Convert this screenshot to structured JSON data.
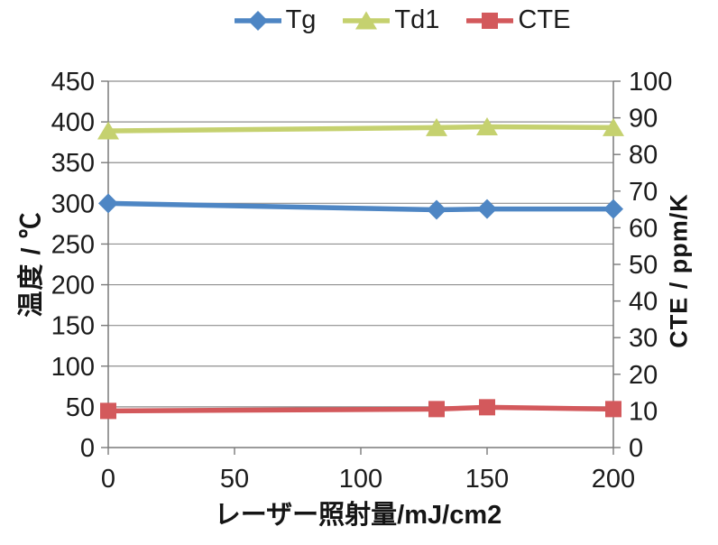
{
  "chart_data": {
    "type": "line",
    "title": "",
    "x": [
      0,
      130,
      150,
      200
    ],
    "x_ticks": [
      0,
      50,
      100,
      150,
      200
    ],
    "xlim": [
      0,
      200
    ],
    "xlabel": "レーザー照射量/mJ/cm2",
    "ylabel_left": "温度 / ℃",
    "ylabel_right": "CTE / ppm/K",
    "y_left": {
      "min": 0,
      "max": 450,
      "step": 50
    },
    "y_right": {
      "min": 0,
      "max": 100,
      "step": 10
    },
    "grid": "horizontal",
    "legend_position": "top",
    "series": [
      {
        "name": "Tg",
        "axis": "left",
        "marker": "diamond",
        "color": "#4e86c4",
        "values": [
          300,
          292,
          293,
          293
        ]
      },
      {
        "name": "Td1",
        "axis": "left",
        "marker": "triangle",
        "color": "#c5d16f",
        "values": [
          389,
          393,
          394,
          393
        ]
      },
      {
        "name": "CTE",
        "axis": "right",
        "marker": "square",
        "color": "#d3595c",
        "values": [
          10,
          10.5,
          11,
          10.5
        ]
      }
    ],
    "colors": {
      "gridline": "#8e8e8e",
      "axis": "#7a7a7a",
      "text": "#1b1b1b"
    }
  }
}
